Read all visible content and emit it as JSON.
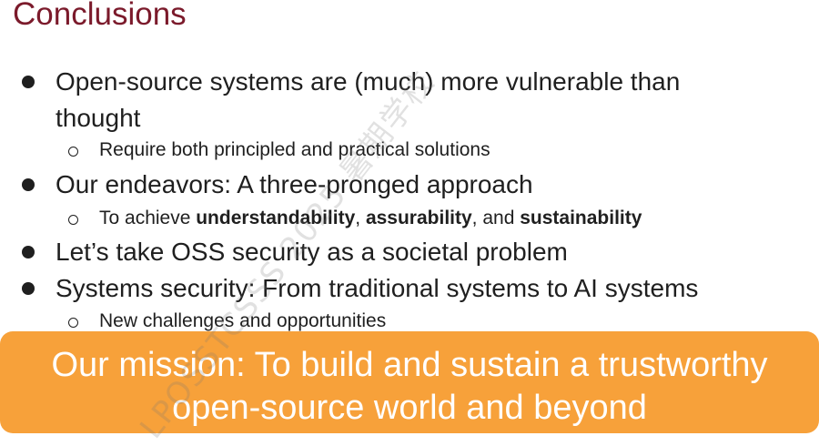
{
  "title": "Conclusions",
  "bullets": {
    "b1_line1": "Open-source systems are (much) more vulnerable than",
    "b1_line2": "thought",
    "b1_sub": "Require both principled and practical solutions",
    "b2": "Our endeavors: A three-pronged approach",
    "b2_sub_prefix": "To achieve ",
    "b2_sub_bold1": "understandability",
    "b2_sub_sep1": ", ",
    "b2_sub_bold2": "assurability",
    "b2_sub_sep2": ", and ",
    "b2_sub_bold3": "sustainability",
    "b3": "Let’s take OSS security as a societal problem",
    "b4": "Systems security: From traditional systems to AI systems",
    "b4_sub": "New challenges and opportunities"
  },
  "banner": {
    "line1": "Our mission: To build and sustain a trustworthy",
    "line2": "open-source world and beyond"
  },
  "watermark": "LPOSSTCSSS 2025 暑期学校"
}
